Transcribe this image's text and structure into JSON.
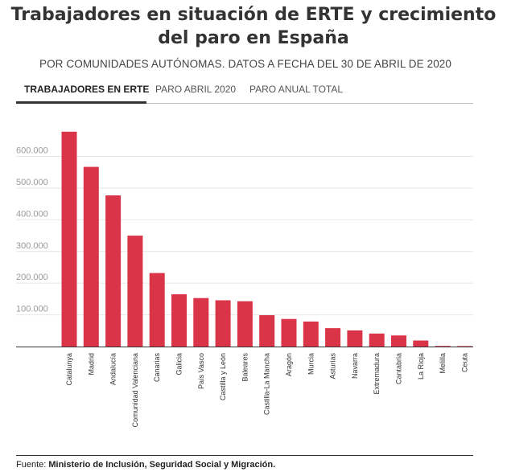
{
  "header": {
    "title_line1": "Trabajadores en situación de ERTE y crecimiento",
    "title_line2": "del paro en España",
    "subtitle": "POR COMUNIDADES AUTÓNOMAS. DATOS A FECHA DEL 30 DE ABRIL DE 2020"
  },
  "tabs": [
    {
      "label": "TRABAJADORES EN ERTE",
      "active": true
    },
    {
      "label": "PARO ABRIL 2020",
      "active": false
    },
    {
      "label": "PARO ANUAL TOTAL",
      "active": false
    }
  ],
  "colors": {
    "bar": "#d93448",
    "grid": "#e6e6e6",
    "axis": "#333333"
  },
  "chart_data": {
    "type": "bar",
    "title": "",
    "xlabel": "",
    "ylabel": "",
    "ylim": [
      0,
      680000
    ],
    "yticks": [
      100000,
      200000,
      300000,
      400000,
      500000,
      600000
    ],
    "ytick_labels": [
      "100.000",
      "200.000",
      "300.000",
      "400.000",
      "500.000",
      "600.000"
    ],
    "categories": [
      "Catalunya",
      "Madrid",
      "Andalucía",
      "Comunidad Valenciana",
      "Canarias",
      "Galicia",
      "País Vasco",
      "Castilla y León",
      "Baleares",
      "Castilla-La Mancha",
      "Aragón",
      "Murcia",
      "Asturias",
      "Navarra",
      "Extremadura",
      "Cantabria",
      "La Rioja",
      "Melilla",
      "Ceuta"
    ],
    "values": [
      678000,
      567000,
      477000,
      350000,
      232000,
      165000,
      153000,
      146000,
      143000,
      99000,
      87000,
      79000,
      58000,
      51000,
      41000,
      35000,
      19000,
      2000,
      1500
    ],
    "grid": true,
    "legend": "none"
  },
  "footer": {
    "prefix": "Fuente: ",
    "source": "Ministerio de Inclusión, Seguridad Social y Migración."
  }
}
